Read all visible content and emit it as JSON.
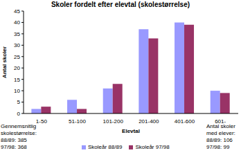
{
  "chart_data": {
    "type": "bar",
    "title": "Skoler fordelt efter elevtal (skolestørrelse)",
    "x_label": "Elevtal",
    "y_label": "Antal skoler",
    "categories": [
      "1-50",
      "51-100",
      "101-200",
      "201-400",
      "401-600",
      "601-"
    ],
    "series": [
      {
        "name": "Skoleår 88/89",
        "color": "#9999ff",
        "values": [
          2,
          6,
          11,
          37,
          40,
          10
        ]
      },
      {
        "name": "Skoleår 97/98",
        "color": "#993366",
        "values": [
          3,
          2,
          13,
          33,
          39,
          9
        ]
      }
    ],
    "ylim": [
      0,
      45
    ],
    "yticks": [
      0,
      5,
      10,
      15,
      20,
      25,
      30,
      35,
      40,
      45
    ],
    "grid": false,
    "legend": "bottom",
    "annotations": [
      [
        "Gennemsnitlig",
        "skolestørrelse:",
        "88/89: 385",
        "97/98: 368"
      ],
      [
        "Antal skoler",
        "med elever:",
        "88/89: 106",
        "97/98: 99"
      ]
    ]
  }
}
